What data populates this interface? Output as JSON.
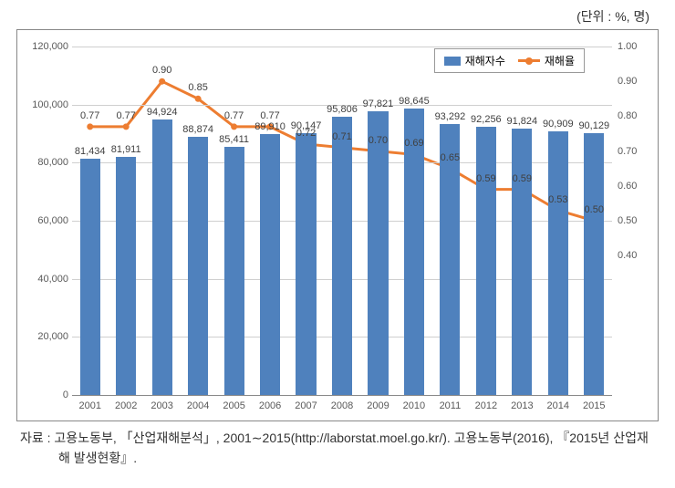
{
  "unit_label": "(단위 : %, 명)",
  "chart": {
    "type": "bar+line",
    "years": [
      "2001",
      "2002",
      "2003",
      "2004",
      "2005",
      "2006",
      "2007",
      "2008",
      "2009",
      "2010",
      "2011",
      "2012",
      "2013",
      "2014",
      "2015"
    ],
    "bar_series": {
      "name": "재해자수",
      "values": [
        81434,
        81911,
        94924,
        88874,
        85411,
        89910,
        90147,
        95806,
        97821,
        98645,
        93292,
        92256,
        91824,
        90909,
        90129
      ],
      "labels": [
        "81,434",
        "81,911",
        "94,924",
        "88,874",
        "85,411",
        "89,910",
        "90,147",
        "95,806",
        "97,821",
        "98,645",
        "93,292",
        "92,256",
        "91,824",
        "90,909",
        "90,129"
      ],
      "color": "#4f81bd"
    },
    "line_series": {
      "name": "재해율",
      "values": [
        0.77,
        0.77,
        0.9,
        0.85,
        0.77,
        0.77,
        0.72,
        0.71,
        0.7,
        0.69,
        0.65,
        0.59,
        0.59,
        0.53,
        0.5
      ],
      "labels": [
        "0.77",
        "0.77",
        "0.90",
        "0.85",
        "0.77",
        "0.77",
        "0.72",
        "0.71",
        "0.70",
        "0.69",
        "0.65",
        "0.59",
        "0.59",
        "0.53",
        "0.50"
      ],
      "color": "#ed7d31",
      "marker_size": 7,
      "line_width": 3
    },
    "y_left": {
      "min": 0,
      "max": 120000,
      "ticks": [
        0,
        20000,
        40000,
        60000,
        80000,
        100000,
        120000
      ],
      "tick_labels": [
        "0",
        "20,000",
        "40,000",
        "60,000",
        "80,000",
        "100,000",
        "120,000"
      ],
      "fontsize": 11
    },
    "y_right": {
      "min": 0,
      "max": 1.0,
      "ticks": [
        0.4,
        0.5,
        0.6,
        0.7,
        0.8,
        0.9,
        1.0
      ],
      "tick_labels": [
        "0.40",
        "0.50",
        "0.60",
        "0.70",
        "0.80",
        "0.90",
        "1.00"
      ],
      "fontsize": 11
    },
    "grid_color": "#cfcfcf",
    "background_color": "#ffffff",
    "bar_width_ratio": 0.56,
    "label_fontsize": 11
  },
  "legend": {
    "items": [
      {
        "key": "bar",
        "label": "재해자수"
      },
      {
        "key": "line",
        "label": "재해율"
      }
    ]
  },
  "source_text": "자료 : 고용노동부, 「산업재해분석」, 2001∼2015(http://laborstat.moel.go.kr/).  고용노동부(2016), 『2015년 산업재해 발생현황』."
}
